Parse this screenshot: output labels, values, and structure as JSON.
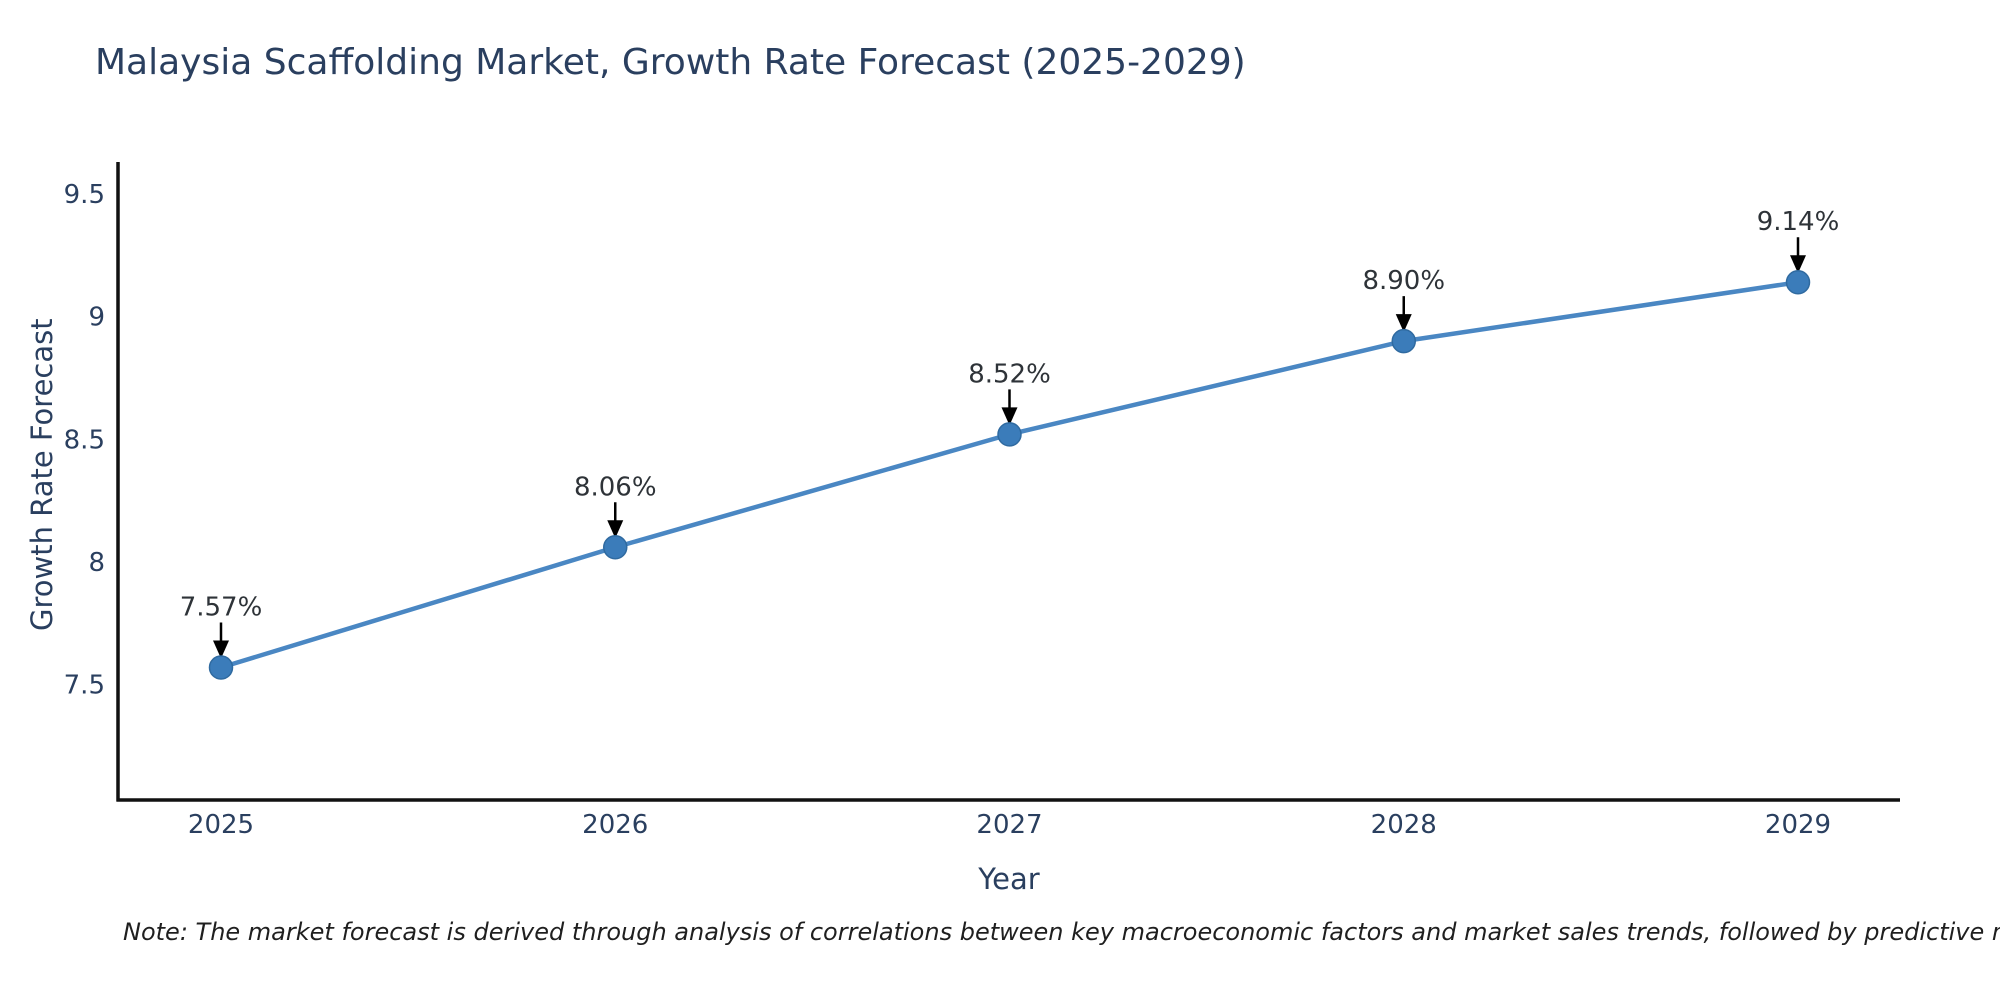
{
  "chart_data": {
    "type": "line",
    "title": "Malaysia Scaffolding Market, Growth Rate Forecast (2025-2029)",
    "xlabel": "Year",
    "ylabel": "Growth Rate Forecast",
    "categories": [
      "2025",
      "2026",
      "2027",
      "2028",
      "2029"
    ],
    "series": [
      {
        "name": "Growth Rate Forecast",
        "values": [
          7.57,
          8.06,
          8.52,
          8.9,
          9.14
        ],
        "point_labels": [
          "7.57%",
          "8.06%",
          "8.52%",
          "8.90%",
          "9.14%"
        ]
      }
    ],
    "y_ticks": [
      7.5,
      8,
      8.5,
      9,
      9.5
    ],
    "y_tick_labels": [
      "7.5",
      "8",
      "8.5",
      "9",
      "9.5"
    ],
    "ylim": [
      7.03,
      9.63
    ],
    "grid": false,
    "legend": "none",
    "annotations": "value labels above each point with downward arrows",
    "note": "Note: The market forecast is derived through analysis of correlations between key macroeconomic factors and market sales trends, followed by predictive modeling to project future sales",
    "colors": {
      "line": "#4a87c3",
      "marker_fill": "#3b7cba",
      "marker_edge": "#2f6aa0",
      "axis_line": "#111111",
      "text": "#2a3f5f",
      "annotation_arrow": "#000000"
    }
  }
}
